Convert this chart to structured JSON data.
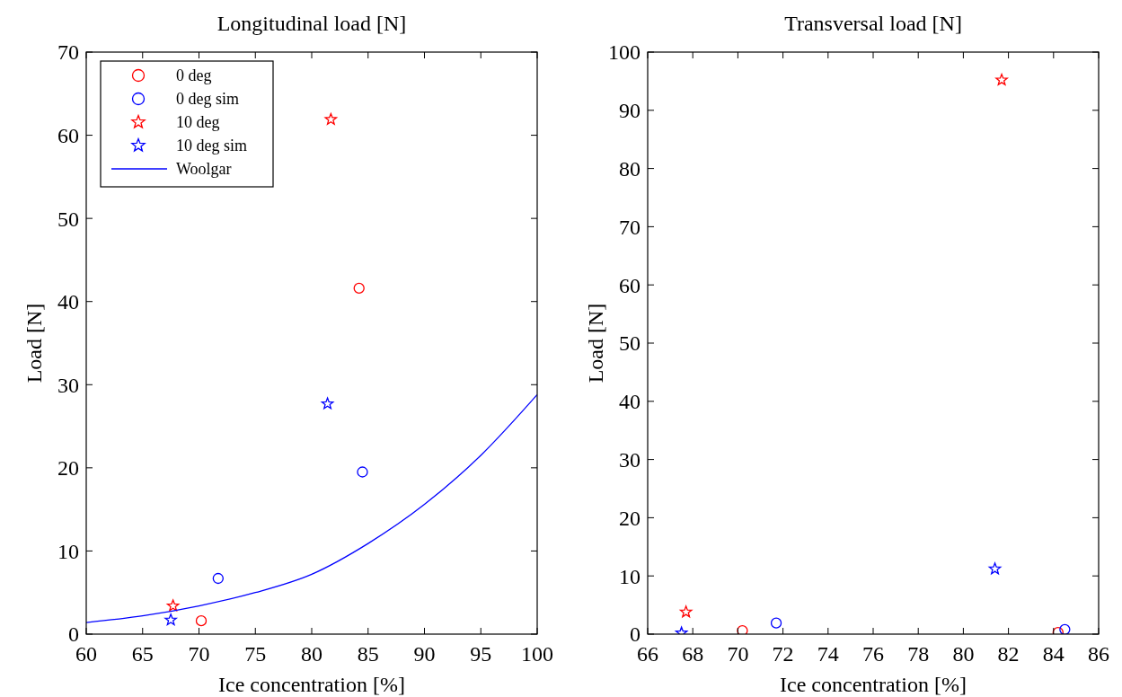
{
  "chart_data": [
    {
      "type": "scatter",
      "title": "Longitudinal load [N]",
      "xlabel": "Ice concentration [%]",
      "ylabel": "Load [N]",
      "xlim": [
        60,
        100
      ],
      "xticks": [
        60,
        65,
        70,
        75,
        80,
        85,
        90,
        95,
        100
      ],
      "ylim": [
        0,
        70
      ],
      "yticks": [
        0,
        10,
        20,
        30,
        40,
        50,
        60,
        70
      ],
      "grid": false,
      "legend": "top left",
      "series": [
        {
          "name": "0 deg",
          "color": "#ff0000",
          "marker": "circle",
          "x": [
            70.2,
            84.2
          ],
          "values": [
            1.6,
            41.6
          ]
        },
        {
          "name": "0 deg sim",
          "color": "#0000ff",
          "marker": "circle",
          "x": [
            71.7,
            84.5
          ],
          "values": [
            6.7,
            19.5
          ]
        },
        {
          "name": "10 deg",
          "color": "#ff0000",
          "marker": "star",
          "x": [
            67.7,
            81.7
          ],
          "values": [
            3.4,
            61.9
          ]
        },
        {
          "name": "10 deg sim",
          "color": "#0000ff",
          "marker": "star",
          "x": [
            67.5,
            81.4
          ],
          "values": [
            1.7,
            27.7
          ]
        },
        {
          "name": "Woolgar",
          "type": "line",
          "color": "#0000ff",
          "marker": "none",
          "line_style": "solid",
          "x": [
            60,
            65,
            70,
            75,
            80,
            85,
            90,
            95,
            100
          ],
          "values": [
            1.4,
            2.2,
            3.4,
            5.0,
            7.2,
            10.9,
            15.6,
            21.5,
            28.8
          ]
        }
      ]
    },
    {
      "type": "scatter",
      "title": "Transversal load [N]",
      "xlabel": "Ice concentration [%]",
      "ylabel": "Load [N]",
      "xlim": [
        66,
        86
      ],
      "xticks": [
        66,
        68,
        70,
        72,
        74,
        76,
        78,
        80,
        82,
        84,
        86
      ],
      "ylim": [
        0,
        100
      ],
      "yticks": [
        0,
        10,
        20,
        30,
        40,
        50,
        60,
        70,
        80,
        90,
        100
      ],
      "grid": false,
      "legend": false,
      "series": [
        {
          "color": "#ff0000",
          "marker": "circle",
          "x": [
            70.2,
            84.2
          ],
          "values": [
            0.6,
            0.3
          ]
        },
        {
          "color": "#0000ff",
          "marker": "circle",
          "x": [
            71.7,
            84.5
          ],
          "values": [
            1.9,
            0.8
          ]
        },
        {
          "color": "#ff0000",
          "marker": "star",
          "x": [
            67.7,
            81.7
          ],
          "values": [
            3.8,
            95.2
          ]
        },
        {
          "color": "#0000ff",
          "marker": "star",
          "x": [
            67.5,
            81.4
          ],
          "values": [
            0.2,
            11.2
          ]
        }
      ]
    }
  ]
}
